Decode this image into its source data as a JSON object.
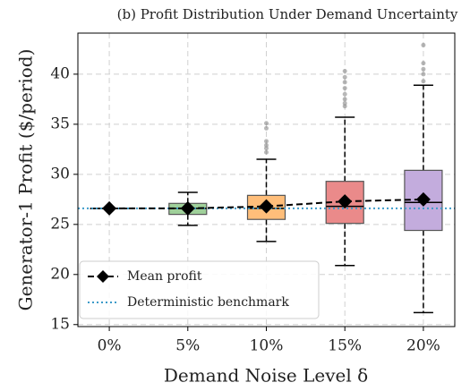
{
  "chart_data": {
    "type": "box",
    "title": "(b) Profit Distribution Under Demand Uncertainty",
    "xlabel": "Demand Noise Level δ",
    "ylabel": "Generator-1 Profit ($/period)",
    "categories": [
      "0%",
      "5%",
      "10%",
      "15%",
      "20%"
    ],
    "boxes": [
      {
        "whislo": 26.6,
        "q1": 26.6,
        "med": 26.6,
        "q3": 26.6,
        "whishi": 26.6,
        "fliers": []
      },
      {
        "whislo": 24.9,
        "q1": 26.0,
        "med": 26.6,
        "q3": 27.1,
        "whishi": 28.2,
        "fliers": []
      },
      {
        "whislo": 23.3,
        "q1": 25.5,
        "med": 26.6,
        "q3": 27.9,
        "whishi": 31.5,
        "fliers": [
          32.2,
          32.6,
          32.9,
          33.3,
          34.6,
          35.1
        ]
      },
      {
        "whislo": 20.9,
        "q1": 25.1,
        "med": 26.8,
        "q3": 29.3,
        "whishi": 35.7,
        "fliers": [
          36.8,
          37.1,
          37.5,
          38.0,
          38.6,
          39.2,
          39.7,
          40.3
        ]
      },
      {
        "whislo": 16.2,
        "q1": 24.4,
        "med": 27.2,
        "q3": 30.4,
        "whishi": 38.9,
        "fliers": [
          39.3,
          40.0,
          40.5,
          41.1,
          42.9
        ]
      }
    ],
    "box_colors": [
      "#8fb4d8",
      "#9fd09a",
      "#ffbe7a",
      "#ea8a8a",
      "#c3acdd"
    ],
    "mean_series": {
      "name": "Mean profit",
      "color": "#000000",
      "values": [
        26.6,
        26.6,
        26.8,
        27.3,
        27.5
      ]
    },
    "benchmark": {
      "name": "Deterministic benchmark",
      "value": 26.6,
      "color": "#3d9bc9"
    },
    "ylim": [
      14.8,
      44.1
    ],
    "yticks": [
      15,
      20,
      25,
      30,
      35,
      40
    ],
    "grid": true,
    "legend": "lower left"
  }
}
